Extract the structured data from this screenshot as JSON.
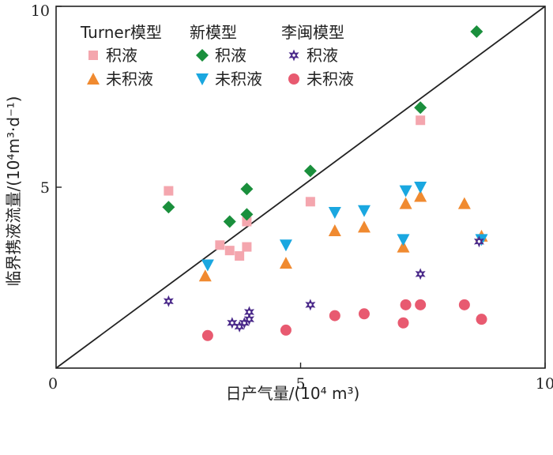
{
  "chart_data": {
    "type": "scatter",
    "xlabel": "日产气量/(10⁴ m³)",
    "ylabel": "临界携液流量/(10⁴m³·d⁻¹)",
    "xlim": [
      0,
      10
    ],
    "ylim": [
      0,
      10
    ],
    "xticks": [
      "0",
      "5",
      "10"
    ],
    "yticks": [
      "5",
      "10"
    ],
    "grid": false,
    "legend_position": "top-left",
    "diagonal_line": true,
    "legend_groups": [
      {
        "title": "Turner模型",
        "entries": [
          {
            "label": "积液",
            "series": 0
          },
          {
            "label": "未积液",
            "series": 1
          }
        ]
      },
      {
        "title": "新模型",
        "entries": [
          {
            "label": "积液",
            "series": 2
          },
          {
            "label": "未积液",
            "series": 3
          }
        ]
      },
      {
        "title": "李闽模型",
        "entries": [
          {
            "label": "积液",
            "series": 4
          },
          {
            "label": "未积液",
            "series": 5
          }
        ]
      }
    ],
    "series": [
      {
        "name": "Turner模型 积液",
        "marker": "square",
        "color": "#f4a6ae",
        "points": [
          [
            2.3,
            4.9
          ],
          [
            3.35,
            3.4
          ],
          [
            3.55,
            3.25
          ],
          [
            3.75,
            3.1
          ],
          [
            3.9,
            3.35
          ],
          [
            3.9,
            4.05
          ],
          [
            5.2,
            4.6
          ],
          [
            7.45,
            6.85
          ]
        ]
      },
      {
        "name": "Turner模型 未积液",
        "marker": "triangle-up",
        "color": "#f08a30",
        "points": [
          [
            3.05,
            2.55
          ],
          [
            4.7,
            2.9
          ],
          [
            5.7,
            3.8
          ],
          [
            6.3,
            3.9
          ],
          [
            7.1,
            3.35
          ],
          [
            7.15,
            4.55
          ],
          [
            7.45,
            4.75
          ],
          [
            8.35,
            4.55
          ],
          [
            8.7,
            3.65
          ]
        ]
      },
      {
        "name": "新模型 积液",
        "marker": "diamond",
        "color": "#1a8f3c",
        "points": [
          [
            2.3,
            4.45
          ],
          [
            3.55,
            4.05
          ],
          [
            3.9,
            4.95
          ],
          [
            3.9,
            4.25
          ],
          [
            5.2,
            5.45
          ],
          [
            7.45,
            7.2
          ],
          [
            8.6,
            9.3
          ]
        ]
      },
      {
        "name": "新模型 未积液",
        "marker": "triangle-down",
        "color": "#1aa7e0",
        "points": [
          [
            3.1,
            2.85
          ],
          [
            4.7,
            3.4
          ],
          [
            5.7,
            4.3
          ],
          [
            6.3,
            4.35
          ],
          [
            7.1,
            3.55
          ],
          [
            7.15,
            4.9
          ],
          [
            7.45,
            5.0
          ],
          [
            8.7,
            3.55
          ]
        ]
      },
      {
        "name": "李闽模型 积液",
        "marker": "star",
        "color": "#4b2a8a",
        "points": [
          [
            2.3,
            1.85
          ],
          [
            3.6,
            1.25
          ],
          [
            3.75,
            1.15
          ],
          [
            3.85,
            1.25
          ],
          [
            3.95,
            1.35
          ],
          [
            3.95,
            1.55
          ],
          [
            5.2,
            1.75
          ],
          [
            7.45,
            2.6
          ],
          [
            8.65,
            3.5
          ]
        ]
      },
      {
        "name": "李闽模型 未积液",
        "marker": "circle",
        "color": "#e85a70",
        "points": [
          [
            3.1,
            0.9
          ],
          [
            4.7,
            1.05
          ],
          [
            5.7,
            1.45
          ],
          [
            6.3,
            1.5
          ],
          [
            7.1,
            1.25
          ],
          [
            7.15,
            1.75
          ],
          [
            7.45,
            1.75
          ],
          [
            8.35,
            1.75
          ],
          [
            8.7,
            1.35
          ]
        ]
      }
    ]
  }
}
